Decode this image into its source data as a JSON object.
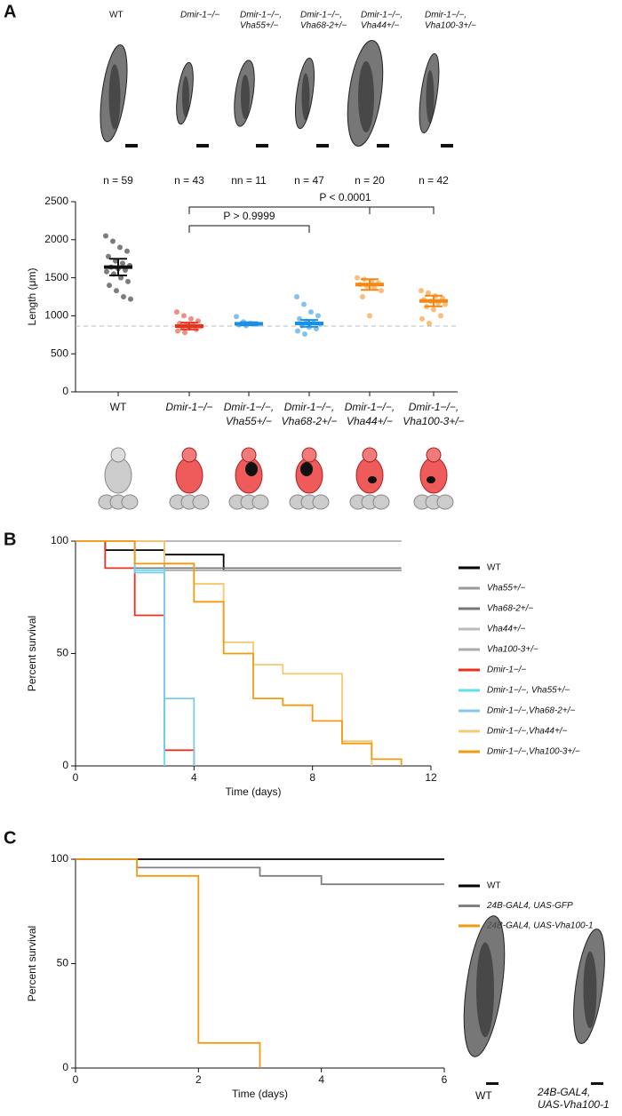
{
  "chart_data": [
    {
      "type": "dotplot",
      "panel": "A",
      "categories": [
        [
          "WT"
        ],
        [
          "Dmir-1−/−"
        ],
        [
          "Dmir-1−/−,",
          "Vha55+/−"
        ],
        [
          "Dmir-1−/−,",
          "Vha68-2+/−"
        ],
        [
          "Dmir-1−/−,",
          "Vha44+/−"
        ],
        [
          "Dmir-1−/−,",
          "Vha100-3+/−"
        ]
      ],
      "n_labels": [
        "n = 59",
        "n = 43",
        "nn = 11",
        "n = 47",
        "n = 20",
        "n = 42"
      ],
      "ylabel": "Length (μm)",
      "ylim": [
        0,
        2500
      ],
      "yticks": [
        0,
        500,
        1000,
        1500,
        2000,
        2500
      ],
      "values": [
        1640,
        865,
        895,
        900,
        1410,
        1195
      ],
      "errors": [
        110,
        45,
        20,
        45,
        70,
        70
      ],
      "colors": [
        "#111111",
        "#e8321e",
        "#1a8fe6",
        "#1a8fe6",
        "#f5860f",
        "#f5860f"
      ],
      "points": [
        [
          2050,
          1980,
          1900,
          1850,
          1780,
          1720,
          1690,
          1660,
          1640,
          1620,
          1600,
          1580,
          1550,
          1500,
          1450,
          1400,
          1330,
          1250,
          1220
        ],
        [
          1050,
          1000,
          960,
          930,
          900,
          880,
          870,
          860,
          850,
          840,
          820,
          800,
          780
        ],
        [
          990,
          920,
          900,
          890,
          880,
          870
        ],
        [
          1250,
          1150,
          1050,
          1000,
          960,
          930,
          910,
          890,
          870,
          850,
          830,
          800,
          760
        ],
        [
          1500,
          1480,
          1450,
          1430,
          1410,
          1390,
          1370,
          1330,
          1250,
          1000
        ],
        [
          1330,
          1300,
          1260,
          1230,
          1210,
          1190,
          1170,
          1150,
          1120,
          1080,
          1000,
          960,
          900
        ]
      ],
      "reference_line": 865,
      "comparisons": [
        {
          "from": 1,
          "to": 3,
          "label": "P > 0.9999"
        },
        {
          "from": 1,
          "to": 5,
          "via": 4,
          "label": "P < 0.0001"
        }
      ]
    },
    {
      "type": "survival",
      "panel": "B",
      "xlabel": "Time (days)",
      "ylabel": "Percent survival",
      "xlim": [
        0,
        12
      ],
      "xticks": [
        0,
        4,
        8,
        12
      ],
      "ylim": [
        0,
        100
      ],
      "yticks": [
        0,
        50,
        100
      ],
      "series": [
        {
          "name": "WT",
          "color": "#000000",
          "x": [
            0,
            1,
            3,
            5,
            11
          ],
          "values": [
            100,
            96,
            94,
            87,
            87
          ]
        },
        {
          "name": "Vha55+/−",
          "color": "#999999",
          "x": [
            0,
            11
          ],
          "values": [
            100,
            100
          ]
        },
        {
          "name": "Vha68-2+/−",
          "color": "#777777",
          "x": [
            0,
            2,
            11
          ],
          "values": [
            100,
            88,
            88
          ]
        },
        {
          "name": "Vha44+/−",
          "color": "#bbbbbb",
          "x": [
            0,
            11
          ],
          "values": [
            100,
            100
          ]
        },
        {
          "name": "Vha100-3+/−",
          "color": "#aaaaaa",
          "x": [
            0,
            3,
            11
          ],
          "values": [
            100,
            87,
            87
          ]
        },
        {
          "name": "Dmir-1−/−",
          "color": "#e8321e",
          "x": [
            0,
            1,
            2,
            3,
            4
          ],
          "values": [
            100,
            88,
            67,
            7,
            0
          ]
        },
        {
          "name": "Dmir-1−/−, Vha55+/−",
          "color": "#5fe0f0",
          "x": [
            0,
            2,
            3
          ],
          "values": [
            100,
            87,
            0
          ]
        },
        {
          "name": "Dmir-1−/−,Vha68-2+/−",
          "color": "#7ccbec",
          "x": [
            0,
            2,
            3,
            4
          ],
          "values": [
            100,
            86,
            30,
            0
          ]
        },
        {
          "name": "Dmir-1−/−,Vha44+/−",
          "color": "#f7c872",
          "x": [
            0,
            3,
            4,
            5,
            6,
            7,
            9,
            10
          ],
          "values": [
            100,
            90,
            81,
            55,
            45,
            41,
            11,
            0
          ]
        },
        {
          "name": "Dmir-1−/−,Vha100-3+/−",
          "color": "#f29a12",
          "x": [
            0,
            2,
            4,
            5,
            6,
            7,
            8,
            9,
            10,
            11
          ],
          "values": [
            100,
            90,
            73,
            50,
            30,
            27,
            20,
            10,
            3,
            0
          ]
        }
      ]
    },
    {
      "type": "survival",
      "panel": "C",
      "xlabel": "Time (days)",
      "ylabel": "Percent survival",
      "xlim": [
        0,
        6
      ],
      "xticks": [
        0,
        2,
        4,
        6
      ],
      "ylim": [
        0,
        100
      ],
      "yticks": [
        0,
        50,
        100
      ],
      "series": [
        {
          "name": "WT",
          "color": "#000000",
          "x": [
            0,
            6
          ],
          "values": [
            100,
            100
          ]
        },
        {
          "name": "24B-GAL4, UAS-GFP",
          "color": "#808080",
          "x": [
            0,
            1,
            3,
            4,
            6
          ],
          "values": [
            100,
            96,
            92,
            88,
            88
          ]
        },
        {
          "name": "24B-GAL4, UAS-Vha100-1",
          "color": "#f29a12",
          "x": [
            0,
            1,
            2,
            3
          ],
          "values": [
            100,
            92,
            12,
            0
          ]
        }
      ],
      "image_labels": [
        [
          "WT"
        ],
        [
          "24B-GAL4,",
          "UAS-Vha100-1"
        ]
      ]
    }
  ]
}
